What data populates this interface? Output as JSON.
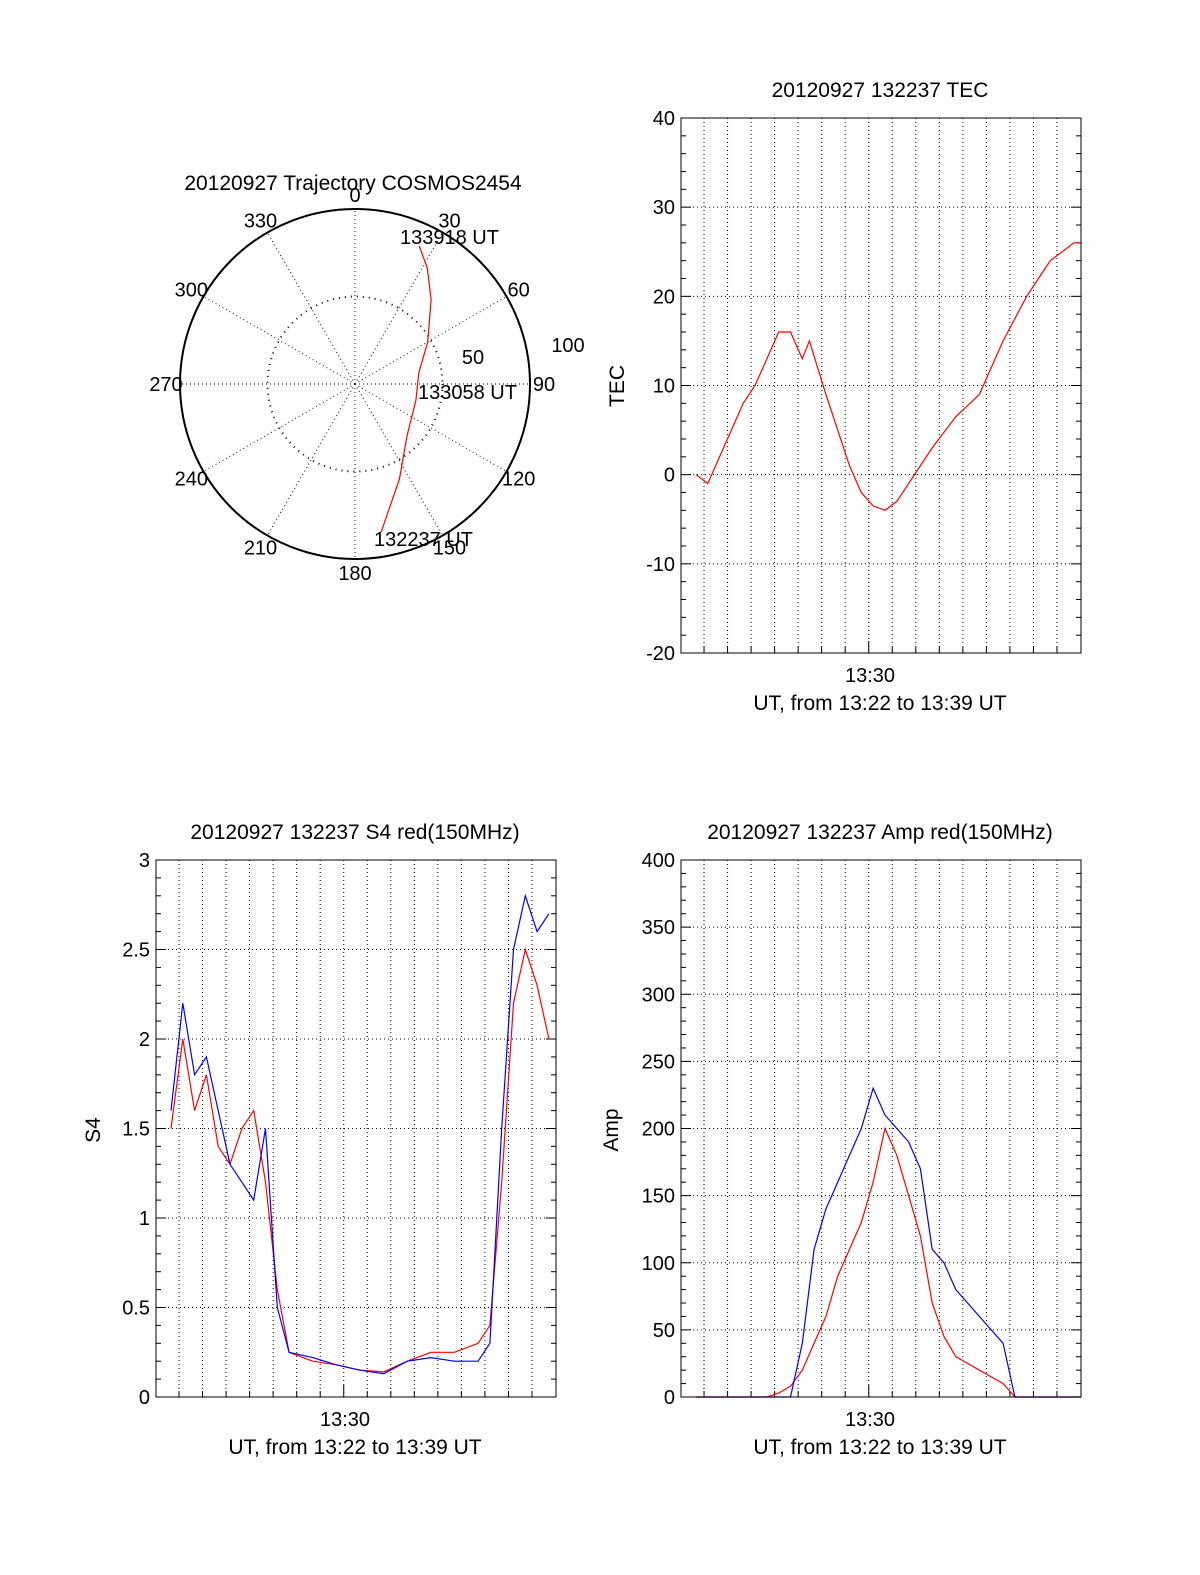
{
  "chart_data": [
    {
      "id": "trajectory",
      "type": "polar",
      "title": "20120927 Trajectory COSMOS2454",
      "azimuth_labels": [
        "0",
        "30",
        "60",
        "90",
        "120",
        "150",
        "180",
        "210",
        "240",
        "270",
        "300",
        "330"
      ],
      "radius_labels": [
        "50",
        "100"
      ],
      "rmax": 100,
      "colors": {
        "track": "#ff0000"
      },
      "track": [
        {
          "az": 170,
          "r": 86
        },
        {
          "az": 155,
          "r": 60
        },
        {
          "az": 135,
          "r": 42
        },
        {
          "az": 105,
          "r": 36
        },
        {
          "az": 80,
          "r": 37
        },
        {
          "az": 60,
          "r": 48
        },
        {
          "az": 42,
          "r": 65
        },
        {
          "az": 32,
          "r": 78
        },
        {
          "az": 25,
          "r": 87
        }
      ],
      "annotations": [
        "133918 UT",
        "133058 UT",
        "132237 UT"
      ]
    },
    {
      "id": "tec",
      "type": "line",
      "title": "20120927 132237 TEC",
      "ylabel": "TEC",
      "xlabel": "UT, from 13:22 to 13:39 UT",
      "xtick_label": "13:30",
      "ylim": [
        -20,
        40
      ],
      "yticks": [
        "-20",
        "-10",
        "0",
        "10",
        "20",
        "30",
        "40"
      ],
      "grid": true,
      "colors": {
        "series": "#ff0000"
      },
      "series": [
        {
          "values": [
            [
              0.0,
              0
            ],
            [
              0.5,
              -1
            ],
            [
              1.0,
              2
            ],
            [
              1.5,
              5
            ],
            [
              2.0,
              8
            ],
            [
              2.5,
              10
            ],
            [
              3.0,
              13
            ],
            [
              3.5,
              16
            ],
            [
              4.0,
              16
            ],
            [
              4.5,
              13
            ],
            [
              4.8,
              15
            ],
            [
              5.5,
              9
            ],
            [
              6.0,
              5
            ],
            [
              6.5,
              1
            ],
            [
              7.0,
              -2
            ],
            [
              7.5,
              -3.5
            ],
            [
              8.0,
              -4
            ],
            [
              8.5,
              -3
            ],
            [
              9.0,
              -1
            ],
            [
              10.0,
              3
            ],
            [
              11.0,
              6.5
            ],
            [
              12.0,
              9
            ],
            [
              12.5,
              12
            ],
            [
              13.0,
              15
            ],
            [
              14.0,
              20
            ],
            [
              14.5,
              22
            ],
            [
              15.0,
              24
            ],
            [
              15.5,
              25
            ],
            [
              16.0,
              26
            ],
            [
              16.3,
              26
            ]
          ]
        }
      ]
    },
    {
      "id": "s4",
      "type": "line",
      "title": "20120927 132237 S4 red(150MHz)",
      "ylabel": "S4",
      "xlabel": "UT, from 13:22 to 13:39 UT",
      "xtick_label": "13:30",
      "ylim": [
        0,
        3
      ],
      "yticks": [
        "0",
        "0.5",
        "1",
        "1.5",
        "2",
        "2.5",
        "3"
      ],
      "grid": true,
      "colors": {
        "red": "#ff0000",
        "blue": "#0000ff"
      },
      "series": [
        {
          "color": "red",
          "values": [
            [
              0.0,
              1.5
            ],
            [
              0.5,
              2.0
            ],
            [
              1.0,
              1.6
            ],
            [
              1.5,
              1.8
            ],
            [
              2.0,
              1.4
            ],
            [
              2.5,
              1.3
            ],
            [
              3.0,
              1.5
            ],
            [
              3.5,
              1.6
            ],
            [
              4.0,
              1.2
            ],
            [
              4.5,
              0.6
            ],
            [
              5.0,
              0.25
            ],
            [
              6.0,
              0.2
            ],
            [
              7.0,
              0.18
            ],
            [
              8.0,
              0.15
            ],
            [
              9.0,
              0.14
            ],
            [
              10.0,
              0.2
            ],
            [
              11.0,
              0.25
            ],
            [
              12.0,
              0.25
            ],
            [
              13.0,
              0.3
            ],
            [
              13.5,
              0.4
            ],
            [
              14.0,
              1.2
            ],
            [
              14.5,
              2.2
            ],
            [
              15.0,
              2.5
            ],
            [
              15.5,
              2.3
            ],
            [
              16.0,
              2.0
            ]
          ]
        },
        {
          "color": "blue",
          "values": [
            [
              0.0,
              1.6
            ],
            [
              0.5,
              2.2
            ],
            [
              1.0,
              1.8
            ],
            [
              1.5,
              1.9
            ],
            [
              2.0,
              1.6
            ],
            [
              2.5,
              1.3
            ],
            [
              3.0,
              1.2
            ],
            [
              3.5,
              1.1
            ],
            [
              4.0,
              1.5
            ],
            [
              4.5,
              0.5
            ],
            [
              5.0,
              0.25
            ],
            [
              6.0,
              0.22
            ],
            [
              7.0,
              0.18
            ],
            [
              8.0,
              0.15
            ],
            [
              9.0,
              0.13
            ],
            [
              10.0,
              0.2
            ],
            [
              11.0,
              0.22
            ],
            [
              12.0,
              0.2
            ],
            [
              13.0,
              0.2
            ],
            [
              13.5,
              0.3
            ],
            [
              14.0,
              1.5
            ],
            [
              14.5,
              2.5
            ],
            [
              15.0,
              2.8
            ],
            [
              15.5,
              2.6
            ],
            [
              16.0,
              2.7
            ]
          ]
        }
      ]
    },
    {
      "id": "amp",
      "type": "line",
      "title": "20120927 132237 Amp red(150MHz)",
      "ylabel": "Amp",
      "xlabel": "UT, from 13:22 to 13:39 UT",
      "xtick_label": "13:30",
      "ylim": [
        0,
        400
      ],
      "yticks": [
        "0",
        "50",
        "100",
        "150",
        "200",
        "250",
        "300",
        "350",
        "400"
      ],
      "grid": true,
      "colors": {
        "red": "#ff0000",
        "blue": "#0000ff"
      },
      "series": [
        {
          "color": "red",
          "values": [
            [
              0.0,
              0
            ],
            [
              3.0,
              0
            ],
            [
              3.5,
              3
            ],
            [
              4.0,
              8
            ],
            [
              4.5,
              20
            ],
            [
              5.0,
              40
            ],
            [
              5.5,
              60
            ],
            [
              6.0,
              90
            ],
            [
              6.5,
              110
            ],
            [
              7.0,
              130
            ],
            [
              7.5,
              160
            ],
            [
              8.0,
              200
            ],
            [
              8.5,
              180
            ],
            [
              9.0,
              150
            ],
            [
              9.5,
              120
            ],
            [
              10.0,
              70
            ],
            [
              10.5,
              45
            ],
            [
              11.0,
              30
            ],
            [
              11.5,
              25
            ],
            [
              12.0,
              20
            ],
            [
              12.5,
              15
            ],
            [
              13.0,
              10
            ],
            [
              13.5,
              0
            ],
            [
              16.3,
              0
            ]
          ]
        },
        {
          "color": "blue",
          "values": [
            [
              0.0,
              0
            ],
            [
              4.0,
              0
            ],
            [
              4.5,
              40
            ],
            [
              5.0,
              110
            ],
            [
              5.5,
              140
            ],
            [
              6.0,
              160
            ],
            [
              6.5,
              180
            ],
            [
              7.0,
              200
            ],
            [
              7.5,
              230
            ],
            [
              8.0,
              210
            ],
            [
              8.5,
              200
            ],
            [
              9.0,
              190
            ],
            [
              9.5,
              170
            ],
            [
              10.0,
              110
            ],
            [
              10.5,
              100
            ],
            [
              11.0,
              80
            ],
            [
              11.5,
              70
            ],
            [
              12.0,
              60
            ],
            [
              12.5,
              50
            ],
            [
              13.0,
              40
            ],
            [
              13.5,
              0
            ],
            [
              16.3,
              0
            ]
          ]
        }
      ]
    }
  ]
}
